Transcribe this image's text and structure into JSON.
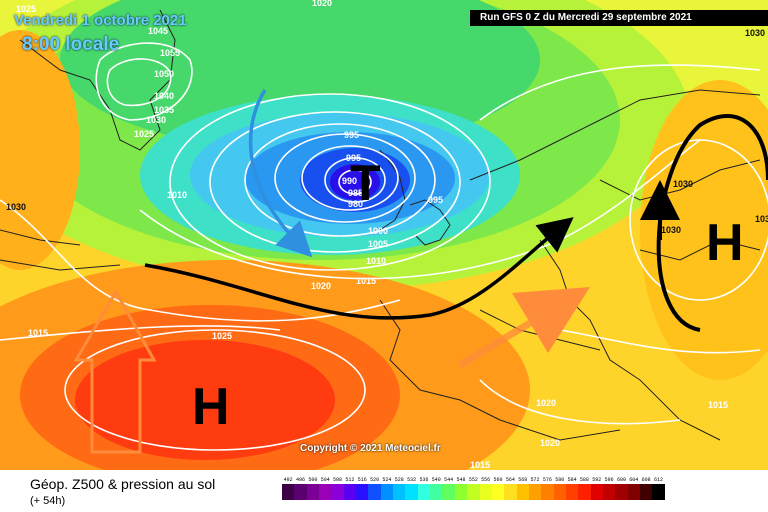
{
  "header": {
    "date": "Vendredi 1 octobre 2021",
    "time": "8:00 locale",
    "run": "Run GFS 0 Z du Mercredi 29 septembre 2021"
  },
  "map": {
    "copyright": "Copyright © 2021 Meteociel.fr",
    "systems": [
      {
        "id": "low",
        "symbol": "T"
      },
      {
        "id": "high-azores",
        "symbol": "H"
      },
      {
        "id": "high-east",
        "symbol": "H"
      }
    ],
    "isobar_labels": [
      "1025",
      "1045",
      "1055",
      "1050",
      "1040",
      "1035",
      "1030",
      "1025",
      "1010",
      "1030",
      "995",
      "995",
      "990",
      "985",
      "980",
      "995",
      "1000",
      "1005",
      "1010",
      "1015",
      "1020",
      "1025",
      "1015",
      "1030",
      "1035",
      "1030",
      "1020",
      "1020",
      "1015",
      "1015",
      "1030",
      "1020"
    ],
    "arrows": [
      {
        "id": "cold-flow",
        "color": "#2f8fe0"
      },
      {
        "id": "jet-stream",
        "color": "#000000"
      },
      {
        "id": "warm-advection-west",
        "color": "#ff8c3a"
      },
      {
        "id": "warm-advection-south",
        "color": "#ff8c3a"
      },
      {
        "id": "anticyclone-circulation",
        "color": "#000000"
      }
    ]
  },
  "footer": {
    "title": "Géop. Z500 & pression au sol",
    "subtitle": "(+ 54h)"
  },
  "scale": {
    "labels": [
      "492",
      "496",
      "500",
      "504",
      "508",
      "512",
      "516",
      "520",
      "524",
      "528",
      "532",
      "536",
      "540",
      "544",
      "548",
      "552",
      "556",
      "560",
      "564",
      "568",
      "572",
      "576",
      "580",
      "584",
      "588",
      "592",
      "596",
      "600",
      "604",
      "608",
      "612"
    ],
    "colors": [
      "#3d0047",
      "#5a0070",
      "#7a0096",
      "#9a00b8",
      "#8b00d8",
      "#5a00f0",
      "#2a10ff",
      "#1050ff",
      "#0090ff",
      "#00c0ff",
      "#00e0ff",
      "#30ff e0",
      "#40ffa0",
      "#60ff60",
      "#90ff30",
      "#c0ff20",
      "#e8ff20",
      "#ffff20",
      "#ffe020",
      "#ffc000",
      "#ffa000",
      "#ff8000",
      "#ff6000",
      "#ff4000",
      "#ff2000",
      "#e00000",
      "#c00000",
      "#a00000",
      "#800000",
      "#400000",
      "#000000"
    ]
  }
}
